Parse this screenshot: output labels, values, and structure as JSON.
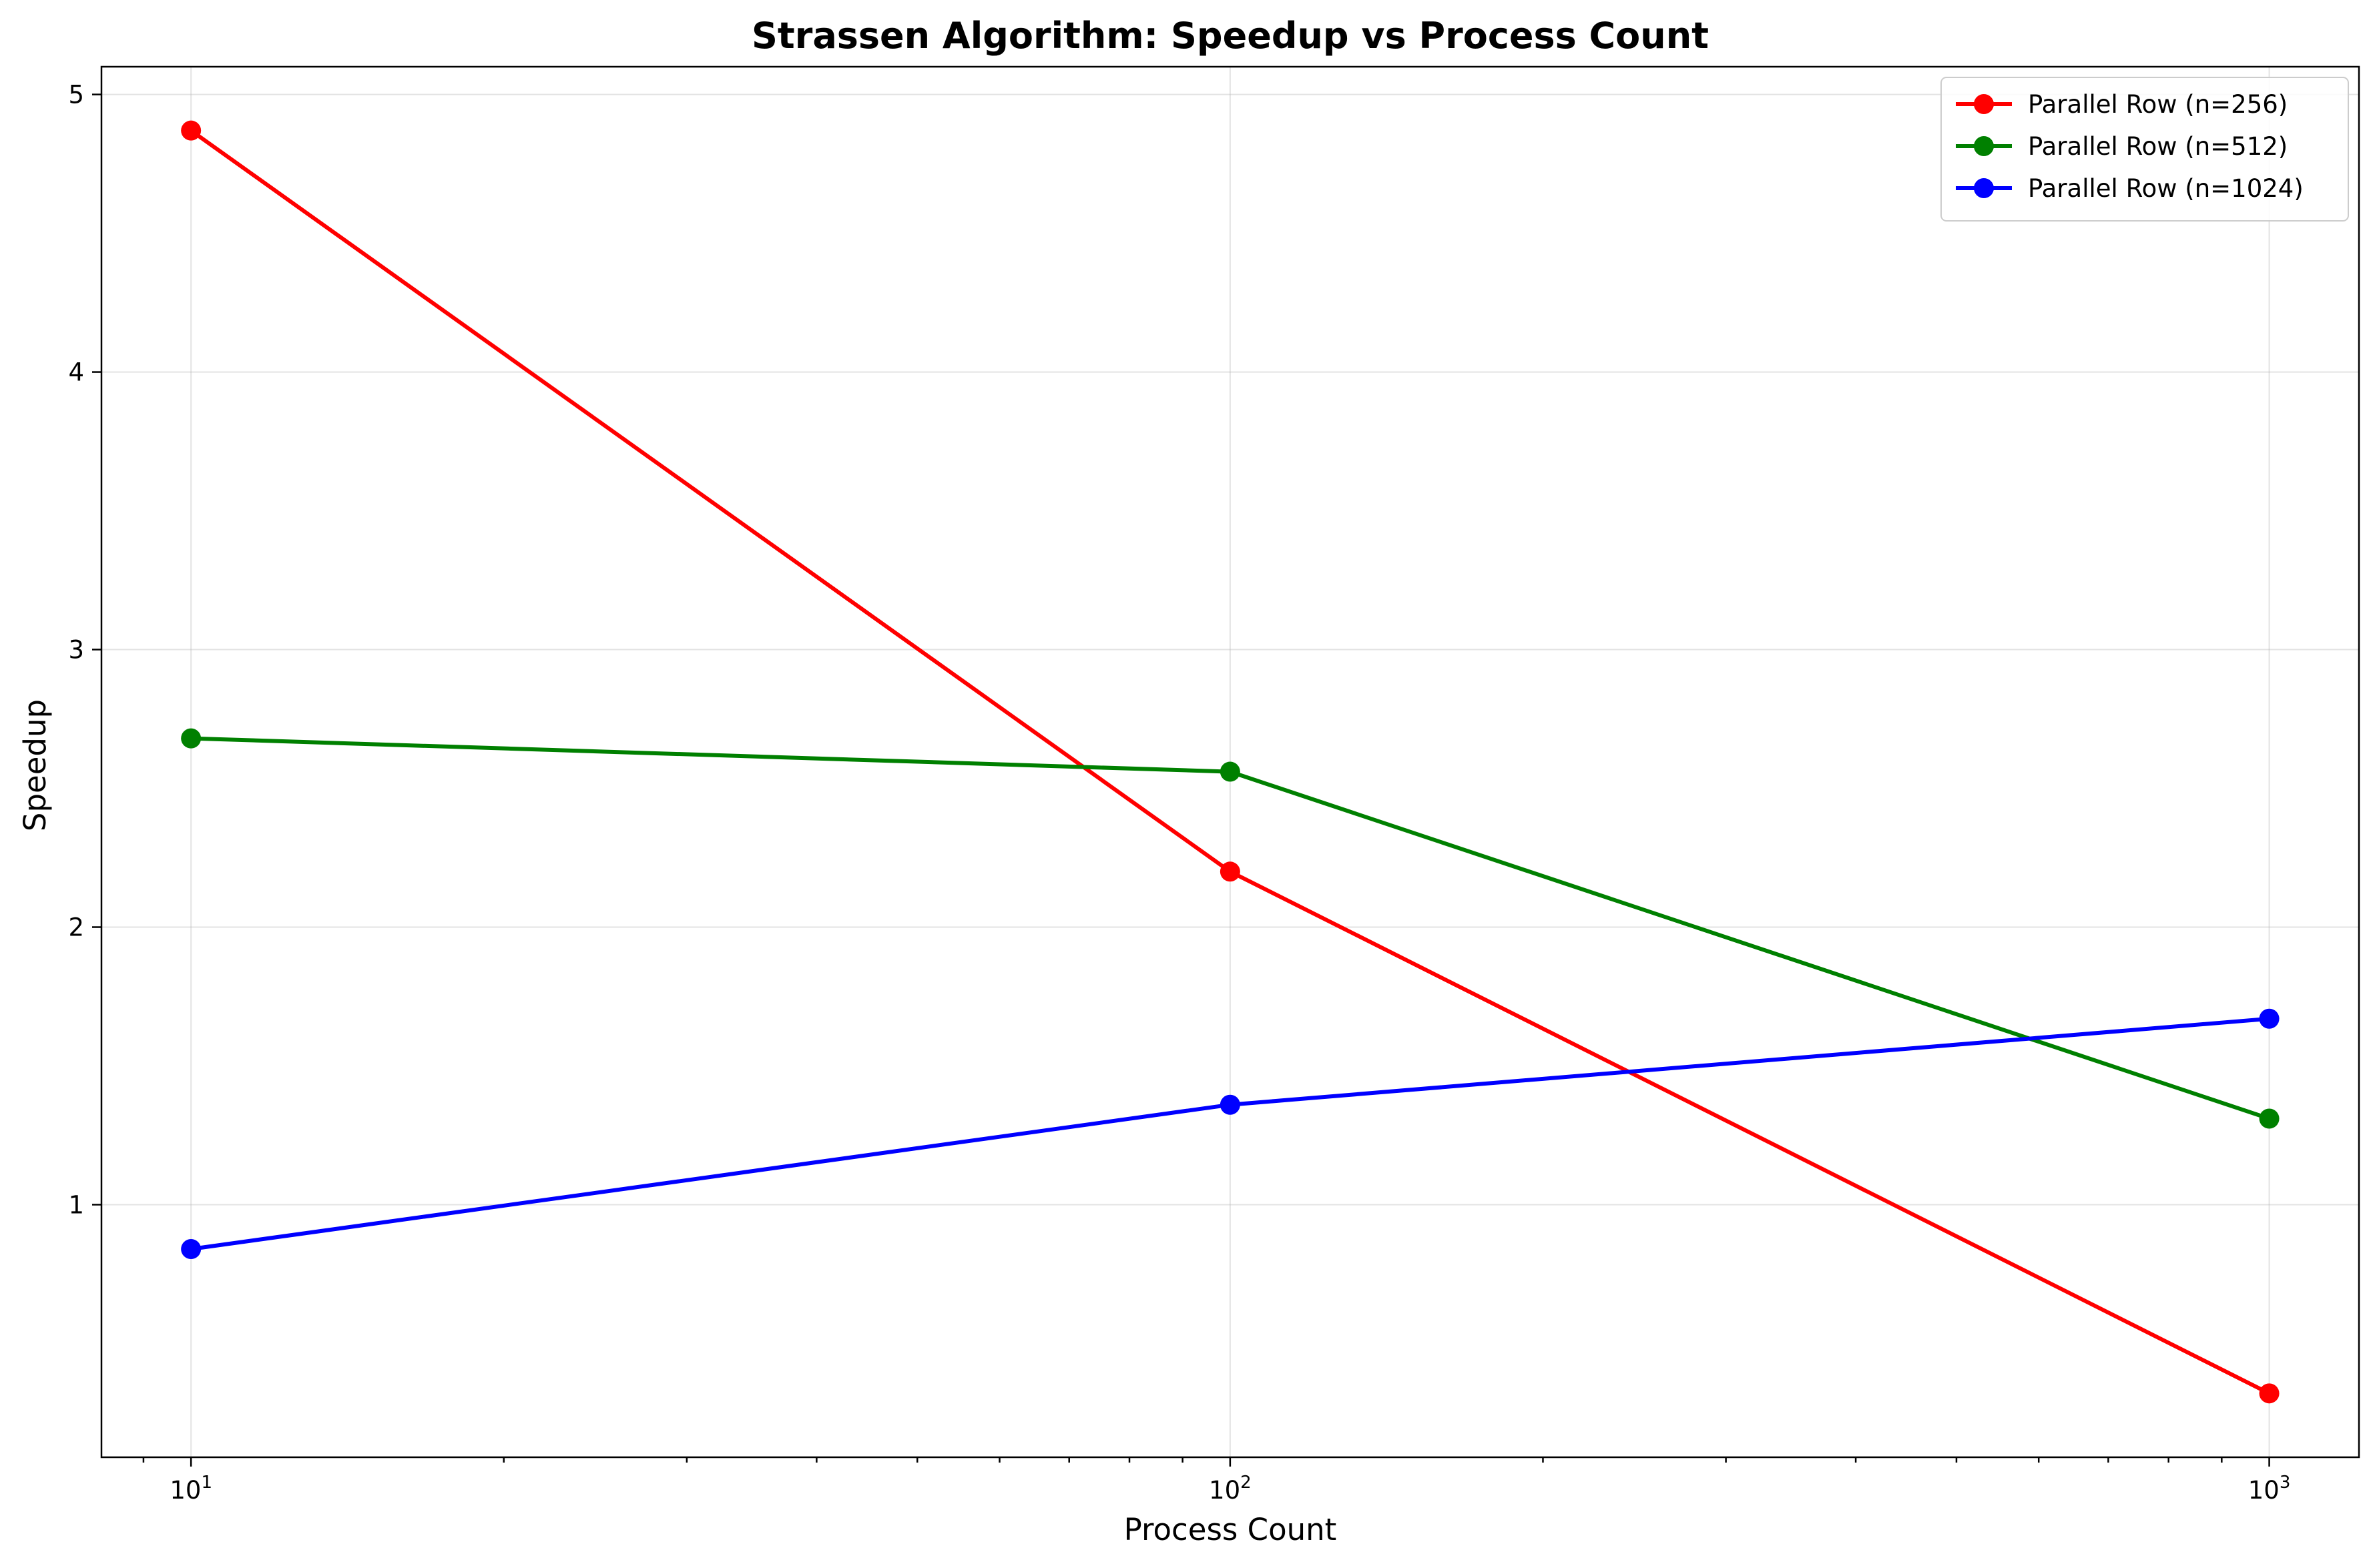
{
  "chart_data": {
    "type": "line",
    "title": "Strassen Algorithm: Speedup vs Process Count",
    "xlabel": "Process Count",
    "ylabel": "Speedup",
    "xscale": "log",
    "xlim": [
      8.2,
      1220
    ],
    "ylim": [
      0.09,
      5.1
    ],
    "xticks": [
      {
        "value": 10,
        "base": "10",
        "exp": "1"
      },
      {
        "value": 100,
        "base": "10",
        "exp": "2"
      },
      {
        "value": 1000,
        "base": "10",
        "exp": "3"
      }
    ],
    "yticks": [
      1,
      2,
      3,
      4,
      5
    ],
    "grid": true,
    "legend_position": "top-right",
    "x": [
      10,
      100,
      1000
    ],
    "series": [
      {
        "name": "Parallel Row (n=256)",
        "color": "#ff0000",
        "values": [
          4.87,
          2.2,
          0.32
        ]
      },
      {
        "name": "Parallel Row (n=512)",
        "color": "#008000",
        "values": [
          2.68,
          2.56,
          1.31
        ]
      },
      {
        "name": "Parallel Row (n=1024)",
        "color": "#0000ff",
        "values": [
          0.84,
          1.36,
          1.67
        ]
      }
    ]
  }
}
